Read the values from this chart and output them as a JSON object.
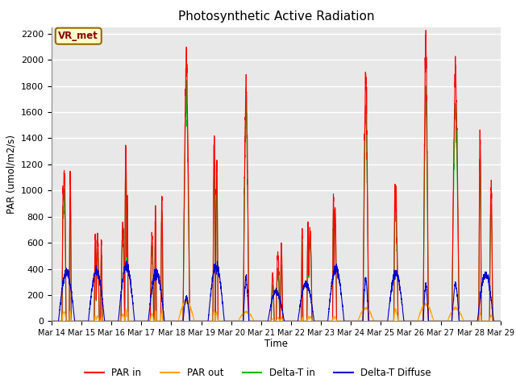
{
  "title": "Photosynthetic Active Radiation",
  "ylabel": "PAR (umol/m2/s)",
  "xlabel": "Time",
  "ylim": [
    0,
    2250
  ],
  "yticks": [
    0,
    200,
    400,
    600,
    800,
    1000,
    1200,
    1400,
    1600,
    1800,
    2000,
    2200
  ],
  "legend_labels": [
    "PAR in",
    "PAR out",
    "Delta-T in",
    "Delta-T Diffuse"
  ],
  "legend_colors": [
    "#ff0000",
    "#ffa500",
    "#00bb00",
    "#0000cc"
  ],
  "watermark_text": "VR_met",
  "watermark_bg": "#ffffcc",
  "watermark_border": "#996600",
  "watermark_text_color": "#880000",
  "fig_bg_color": "#ffffff",
  "plot_bg_color": "#e8e8e8",
  "grid_color": "#ffffff",
  "n_days": 15,
  "start_day": 14,
  "colors": {
    "par_in": "#ff0000",
    "par_out": "#ffa500",
    "delta_t_in": "#00bb00",
    "delta_t_diffuse": "#0000cc"
  }
}
